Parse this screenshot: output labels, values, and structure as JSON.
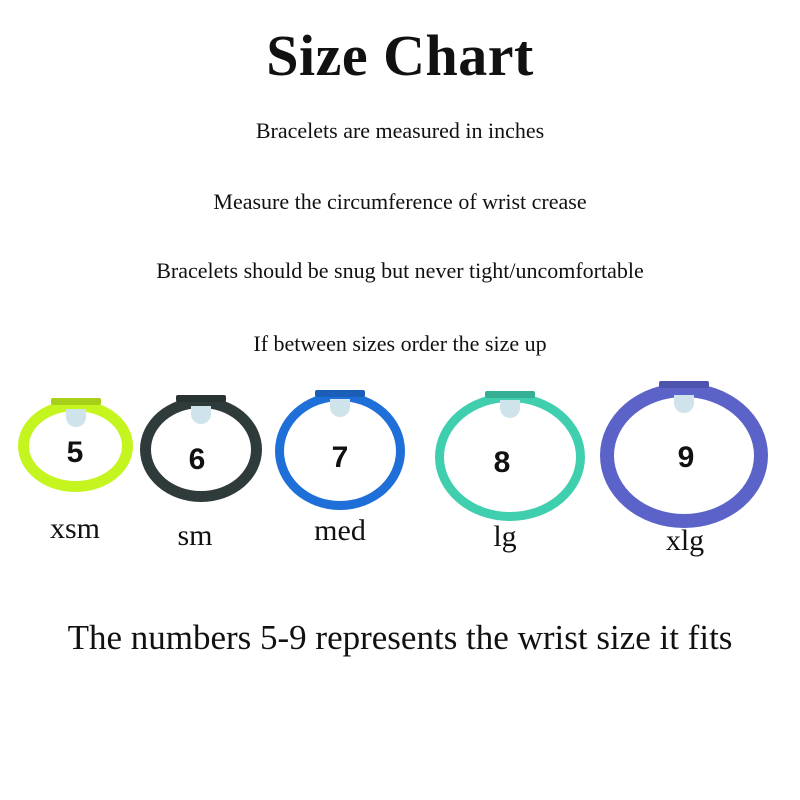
{
  "title": "Size Chart",
  "instructions": [
    "Bracelets are measured in inches",
    "Measure the circumference of wrist crease",
    "Bracelets should be snug but never tight/uncomfortable",
    "If between sizes order the size up"
  ],
  "bracelets": [
    {
      "number": "5",
      "size": "xsm",
      "color": "#c4f51f"
    },
    {
      "number": "6",
      "size": "sm",
      "color": "#2f3b3a"
    },
    {
      "number": "7",
      "size": "med",
      "color": "#1f6fd8"
    },
    {
      "number": "8",
      "size": "lg",
      "color": "#3fcfae"
    },
    {
      "number": "9",
      "size": "xlg",
      "color": "#5b63c9"
    }
  ],
  "footer": "The numbers 5-9 represents the wrist size it fits"
}
